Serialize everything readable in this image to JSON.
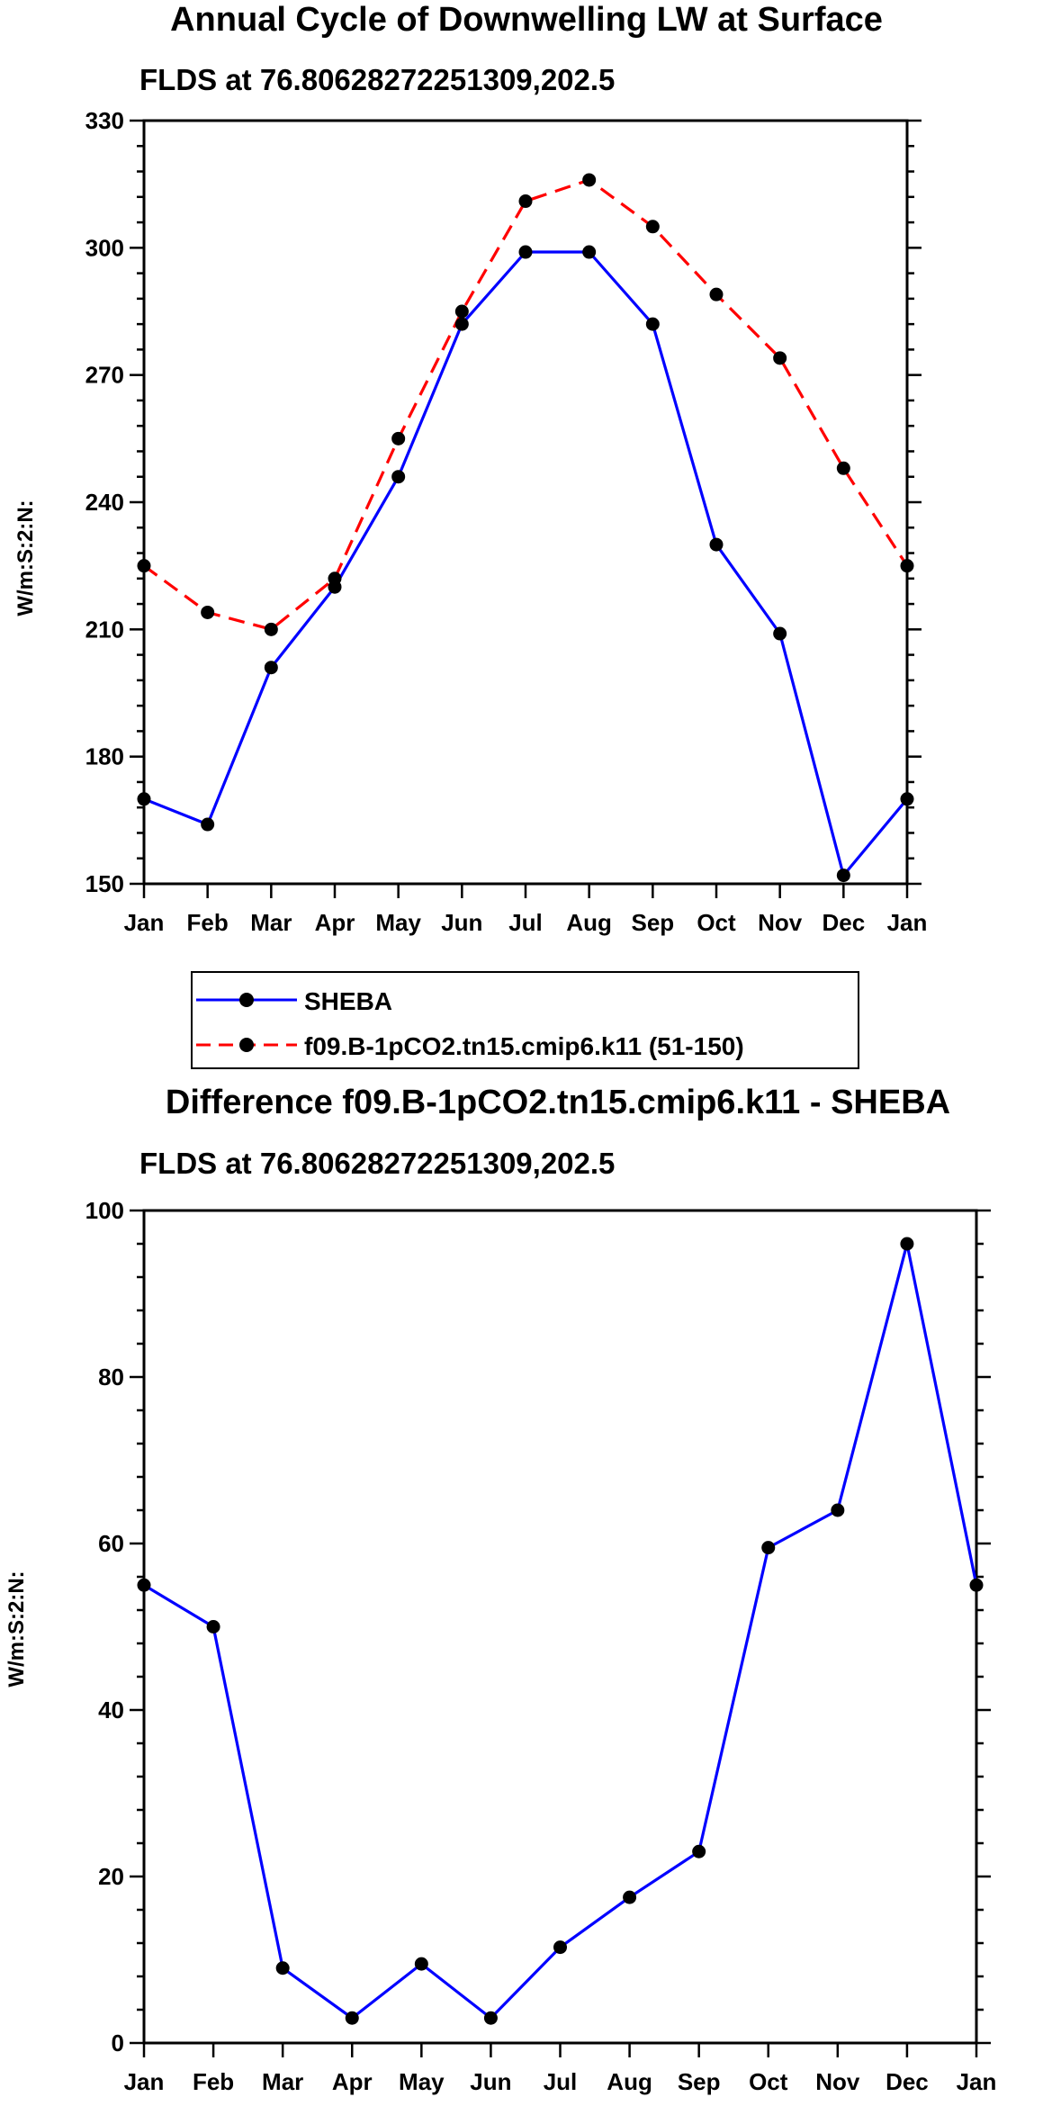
{
  "chart_data": [
    {
      "type": "line",
      "title": "Annual Cycle of Downwelling LW at Surface",
      "subtitle": "FLDS at 76.80628272251309,202.5",
      "xlabel": "",
      "ylabel": "W/m:S:2:N:",
      "categories": [
        "Jan",
        "Feb",
        "Mar",
        "Apr",
        "May",
        "Jun",
        "Jul",
        "Aug",
        "Sep",
        "Oct",
        "Nov",
        "Dec",
        "Jan"
      ],
      "ylim": [
        150,
        330
      ],
      "yticks": [
        150,
        180,
        210,
        240,
        270,
        300,
        330
      ],
      "series": [
        {
          "name": "SHEBA",
          "color": "#0000ff",
          "dash": "solid",
          "values": [
            170,
            164,
            201,
            220,
            246,
            282,
            299,
            299,
            282,
            230,
            209,
            152,
            170
          ]
        },
        {
          "name": "f09.B-1pCO2.tn15.cmip6.k11 (51-150)",
          "color": "#ff0000",
          "dash": "dashed",
          "values": [
            225,
            214,
            210,
            222,
            255,
            285,
            311,
            316,
            305,
            289,
            274,
            248,
            225
          ]
        }
      ],
      "legend": "bottom"
    },
    {
      "type": "line",
      "title": "Difference f09.B-1pCO2.tn15.cmip6.k11 - SHEBA",
      "subtitle": "FLDS at 76.80628272251309,202.5",
      "xlabel": "",
      "ylabel": "W/m:S:2:N:",
      "categories": [
        "Jan",
        "Feb",
        "Mar",
        "Apr",
        "May",
        "Jun",
        "Jul",
        "Aug",
        "Sep",
        "Oct",
        "Nov",
        "Dec",
        "Jan"
      ],
      "ylim": [
        0,
        100
      ],
      "yticks": [
        0,
        20,
        40,
        60,
        80,
        100
      ],
      "series": [
        {
          "name": "Difference",
          "color": "#0000ff",
          "dash": "solid",
          "values": [
            55,
            50,
            9,
            3,
            9.5,
            3,
            11.5,
            17.5,
            23,
            59.5,
            64,
            96,
            55
          ]
        }
      ]
    }
  ]
}
